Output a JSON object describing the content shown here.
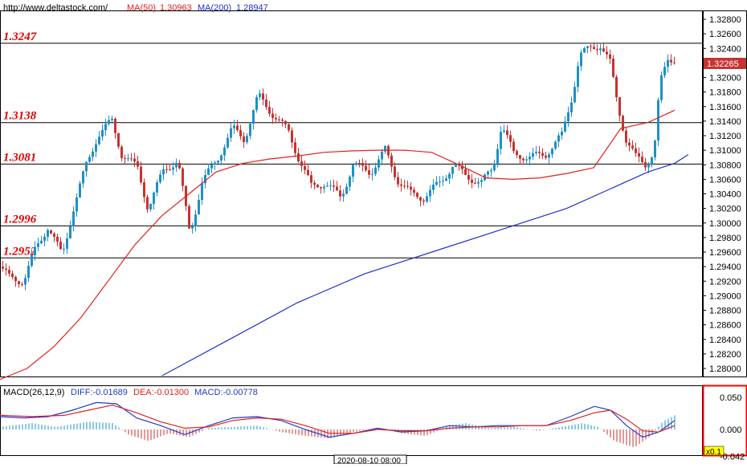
{
  "header": {
    "site": "http://www.deltastock.com/",
    "ma50_label": "MA(50)",
    "ma50_value": "1.30963",
    "ma200_label": "MA(200)",
    "ma200_value": "1.28947"
  },
  "macd_header": {
    "name": "MACD(26,12,9)",
    "diff": "DIFF:-0.01689",
    "dea": "DEA:-0.01300",
    "macd": "MACD:-0.00778"
  },
  "x_label": "2020-08-10 08:00",
  "zoom_badge": "x0.1",
  "colors": {
    "up": "#1e90c8",
    "down": "#c83232",
    "ma50": "#e02020",
    "ma200": "#2030d0",
    "diff": "#1e3cc8",
    "dea": "#e02020"
  },
  "chart_data": [
    {
      "type": "candlestick",
      "title": "",
      "xlabel": "",
      "ylabel": "",
      "ylim": [
        1.2784,
        1.329
      ],
      "y_ticks": [
        "1.32800",
        "1.32600",
        "1.32400",
        "1.32200",
        "1.32000",
        "1.31800",
        "1.31600",
        "1.31400",
        "1.31200",
        "1.31000",
        "1.30800",
        "1.30600",
        "1.30400",
        "1.30200",
        "1.30000",
        "1.29800",
        "1.29600",
        "1.29400",
        "1.29200",
        "1.29000",
        "1.28800",
        "1.28600",
        "1.28400",
        "1.28200",
        "1.28000"
      ],
      "last_price": "1.32265",
      "levels": [
        "1.3247",
        "1.3138",
        "1.3081",
        "1.2996",
        "1.2952"
      ],
      "series": [
        {
          "name": "MA(50)",
          "values": [
            1.2785,
            1.28,
            1.283,
            1.287,
            1.292,
            1.297,
            1.301,
            1.304,
            1.307,
            1.3082,
            1.3088,
            1.3092,
            1.3097,
            1.3099,
            1.31,
            1.31,
            1.3097,
            1.308,
            1.3062,
            1.306,
            1.3062,
            1.3068,
            1.3076,
            1.313,
            1.3138,
            1.3155
          ],
          "x": [
            0,
            20,
            40,
            60,
            80,
            100,
            120,
            140,
            160,
            180,
            200,
            220,
            240,
            260,
            280,
            300,
            320,
            340,
            360,
            380,
            400,
            420,
            440,
            460,
            480,
            500
          ]
        },
        {
          "name": "MA(200)",
          "values": [
            1.279,
            1.284,
            1.289,
            1.293,
            1.296,
            1.299,
            1.302,
            1.3045,
            1.307,
            1.3082,
            1.3094
          ],
          "x": [
            120,
            170,
            220,
            270,
            320,
            370,
            420,
            450,
            480,
            500,
            510
          ]
        }
      ]
    },
    {
      "type": "bar",
      "title": "",
      "ylim": [
        -0.042,
        0.075
      ],
      "y_ticks": [
        "0.050",
        "0.000",
        "-0.042"
      ],
      "series": [
        {
          "name": "DIFF"
        },
        {
          "name": "DEA"
        },
        {
          "name": "MACD"
        }
      ]
    }
  ]
}
